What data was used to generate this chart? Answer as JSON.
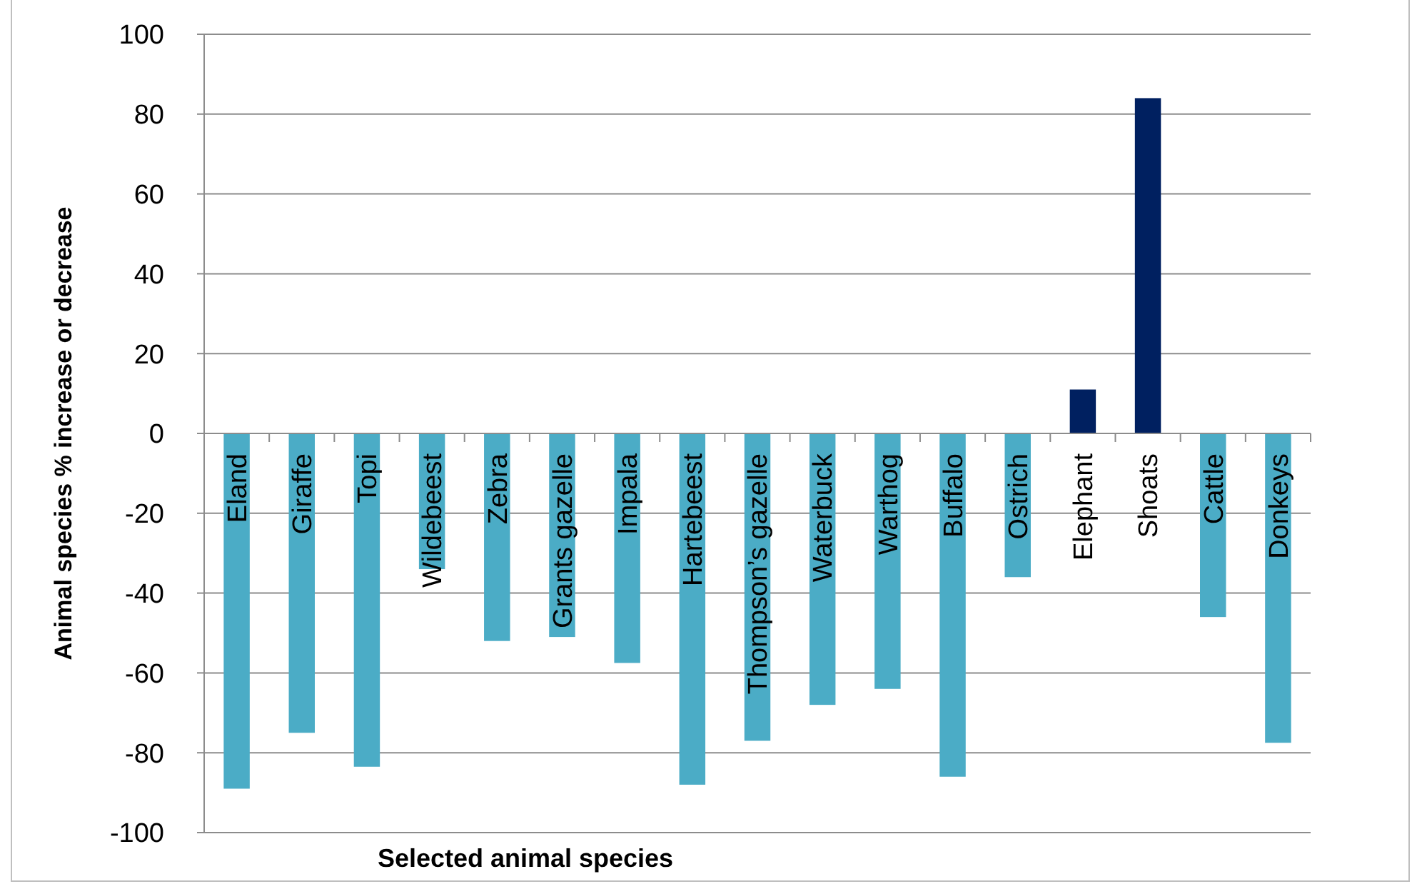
{
  "chart_data": {
    "type": "bar",
    "xlabel": "Selected animal species",
    "ylabel": "Animal species % increase or decrease",
    "categories": [
      "Eland",
      "Giraffe",
      "Topi",
      "Wildebeest",
      "Zebra",
      "Grants gazelle",
      "Impala",
      "Hartebeest",
      "Thompson’s gazelle",
      "Waterbuck",
      "Warthog",
      "Buffalo",
      "Ostrich",
      "Elephant",
      "Shoats",
      "Cattle",
      "Donkeys"
    ],
    "values": [
      -89,
      -75,
      -83.5,
      -34,
      -52,
      -51,
      -57.5,
      -88,
      -77,
      -68,
      -64,
      -86,
      -36,
      11,
      84,
      -46,
      -77.5
    ],
    "colors": [
      "#4bacc6",
      "#4bacc6",
      "#4bacc6",
      "#4bacc6",
      "#4bacc6",
      "#4bacc6",
      "#4bacc6",
      "#4bacc6",
      "#4bacc6",
      "#4bacc6",
      "#4bacc6",
      "#4bacc6",
      "#4bacc6",
      "#002060",
      "#002060",
      "#4bacc6",
      "#4bacc6"
    ],
    "ylim": [
      -100,
      100
    ],
    "yticks": [
      -100,
      -80,
      -60,
      -40,
      -20,
      0,
      20,
      40,
      60,
      80,
      100
    ],
    "grid": "y"
  }
}
